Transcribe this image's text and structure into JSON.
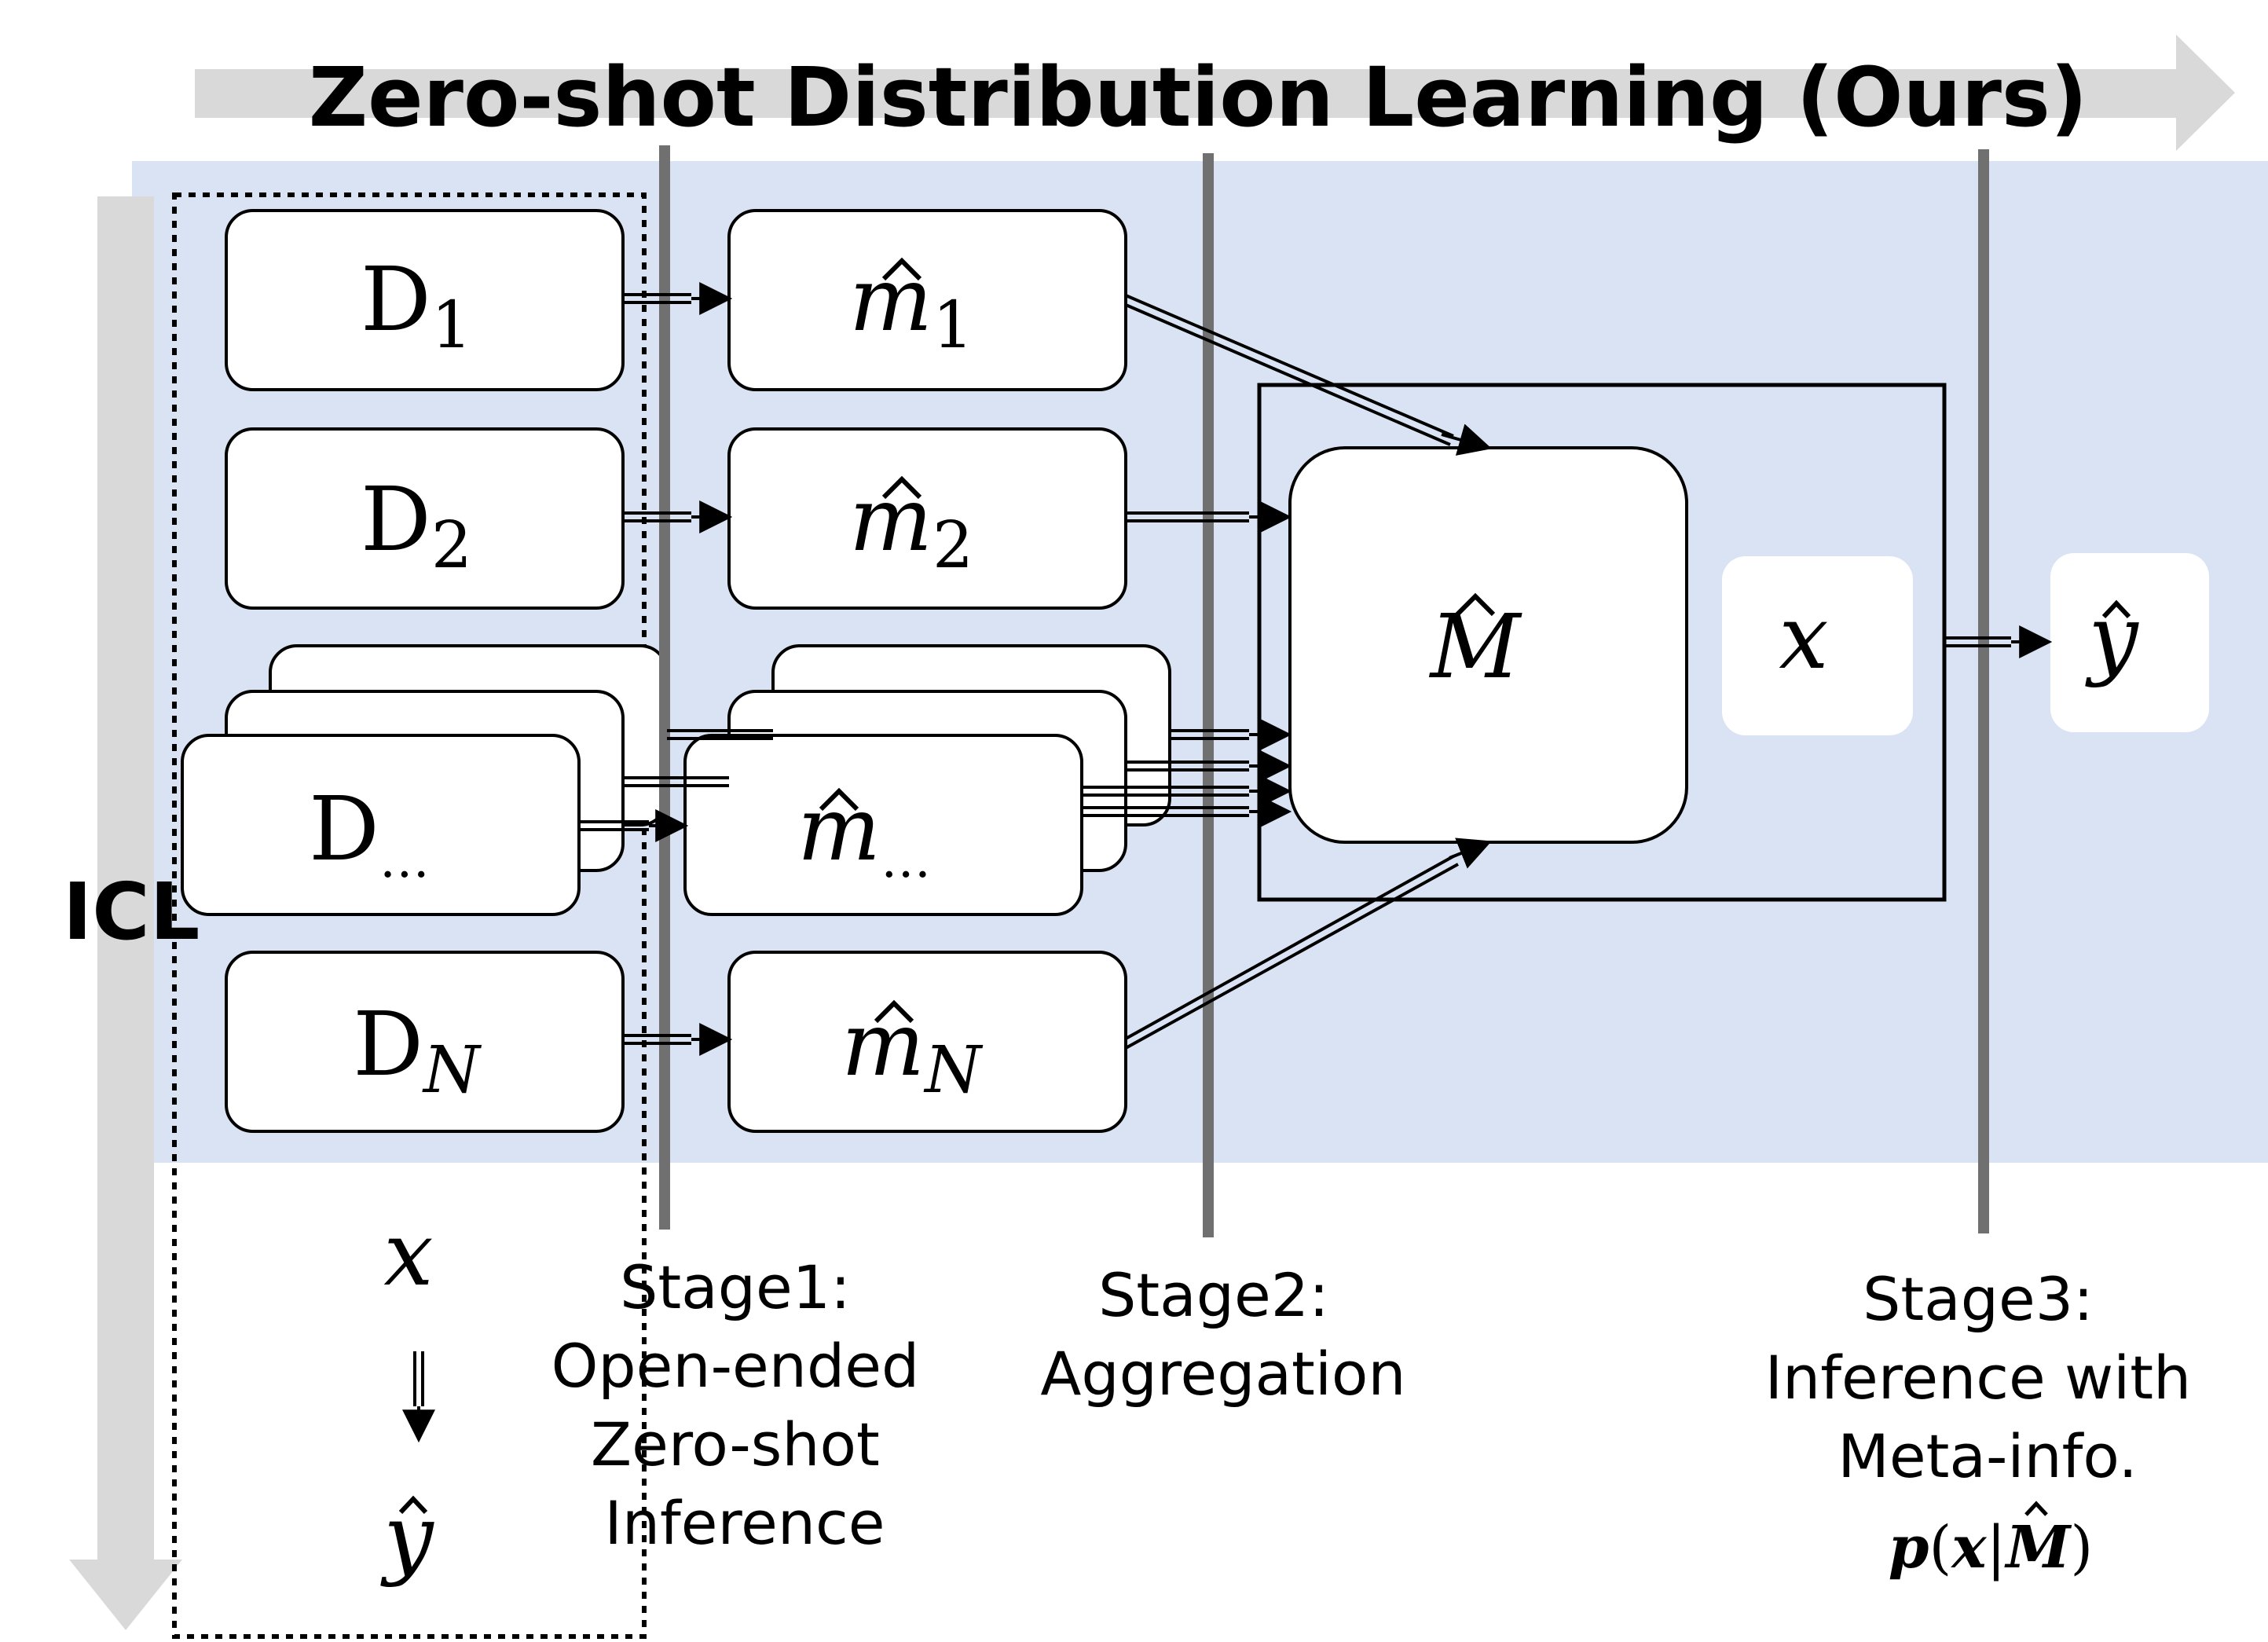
{
  "title": "Zero-shot Distribution Learning (Ours)",
  "icl_label": "ICL",
  "datasets": {
    "d1": {
      "base": "D",
      "sub": "1"
    },
    "d2": {
      "base": "D",
      "sub": "2"
    },
    "dn_mid": {
      "base": "D",
      "sub": "…"
    },
    "dN": {
      "base": "D",
      "sub": "N"
    }
  },
  "metas": {
    "m1": {
      "base": "m",
      "sub": "1"
    },
    "m2": {
      "base": "m",
      "sub": "2"
    },
    "m_mid": {
      "base": "m",
      "sub": "…"
    },
    "mN": {
      "base": "m",
      "sub": "N"
    }
  },
  "aggregate": {
    "label": "M"
  },
  "input": {
    "label": "x"
  },
  "output": {
    "label": "y"
  },
  "icl_flow": {
    "input": "x",
    "output": "y"
  },
  "stages": {
    "stage1": {
      "lines": [
        "Stage1:",
        "Open-ended",
        "Zero-shot",
        "Inference"
      ]
    },
    "stage2": {
      "lines": [
        "Stage2:",
        "Aggregation"
      ]
    },
    "stage3": {
      "lines": [
        "Stage3:",
        "Inference with",
        "Meta-info."
      ],
      "formula": {
        "p": "p",
        "x": "x",
        "M": "M"
      }
    }
  },
  "colors": {
    "band": "#dae3f3",
    "arrow_gray": "#d9d9d9",
    "divider": "#707070",
    "ink": "#000000",
    "box_fill": "#ffffff"
  }
}
